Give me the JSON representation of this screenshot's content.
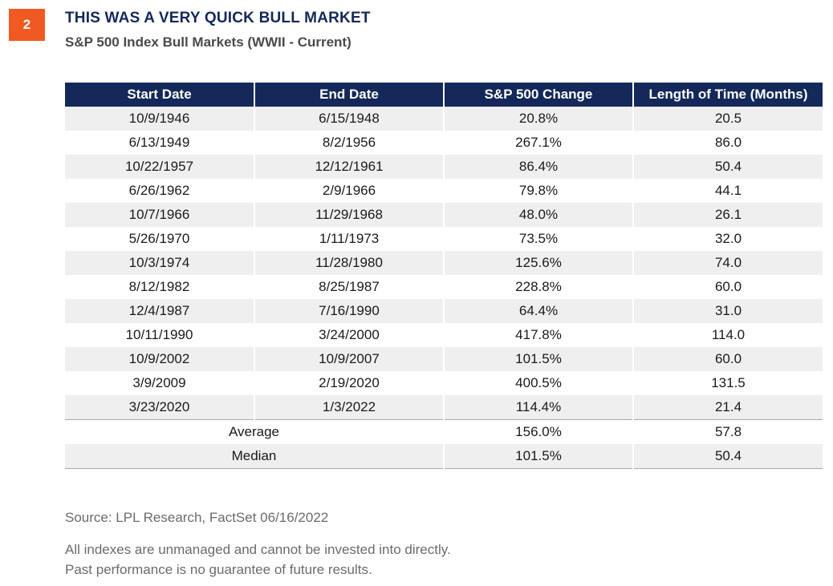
{
  "badge": "2",
  "chart_data": {
    "type": "table",
    "title": "THIS WAS A VERY QUICK BULL MARKET",
    "subtitle": "S&P 500 Index Bull Markets (WWII - Current)",
    "columns": [
      "Start Date",
      "End Date",
      "S&P 500 Change",
      "Length of Time (Months)"
    ],
    "rows": [
      [
        "10/9/1946",
        "6/15/1948",
        "20.8%",
        "20.5"
      ],
      [
        "6/13/1949",
        "8/2/1956",
        "267.1%",
        "86.0"
      ],
      [
        "10/22/1957",
        "12/12/1961",
        "86.4%",
        "50.4"
      ],
      [
        "6/26/1962",
        "2/9/1966",
        "79.8%",
        "44.1"
      ],
      [
        "10/7/1966",
        "11/29/1968",
        "48.0%",
        "26.1"
      ],
      [
        "5/26/1970",
        "1/11/1973",
        "73.5%",
        "32.0"
      ],
      [
        "10/3/1974",
        "11/28/1980",
        "125.6%",
        "74.0"
      ],
      [
        "8/12/1982",
        "8/25/1987",
        "228.8%",
        "60.0"
      ],
      [
        "12/4/1987",
        "7/16/1990",
        "64.4%",
        "31.0"
      ],
      [
        "10/11/1990",
        "3/24/2000",
        "417.8%",
        "114.0"
      ],
      [
        "10/9/2002",
        "10/9/2007",
        "101.5%",
        "60.0"
      ],
      [
        "3/9/2009",
        "2/19/2020",
        "400.5%",
        "131.5"
      ],
      [
        "3/23/2020",
        "1/3/2022",
        "114.4%",
        "21.4"
      ]
    ],
    "summary": [
      {
        "label": "Average",
        "change": "156.0%",
        "length": "57.8"
      },
      {
        "label": "Median",
        "change": "101.5%",
        "length": "50.4"
      }
    ]
  },
  "source": "Source: LPL Research, FactSet  06/16/2022",
  "disclaimer": [
    "All indexes are unmanaged and cannot be invested into directly.",
    "Past performance is no guarantee of future results."
  ],
  "colors": {
    "badge": "#f05a22",
    "header_bg": "#14295a",
    "title": "#14295a",
    "stripe": "#efefef"
  }
}
